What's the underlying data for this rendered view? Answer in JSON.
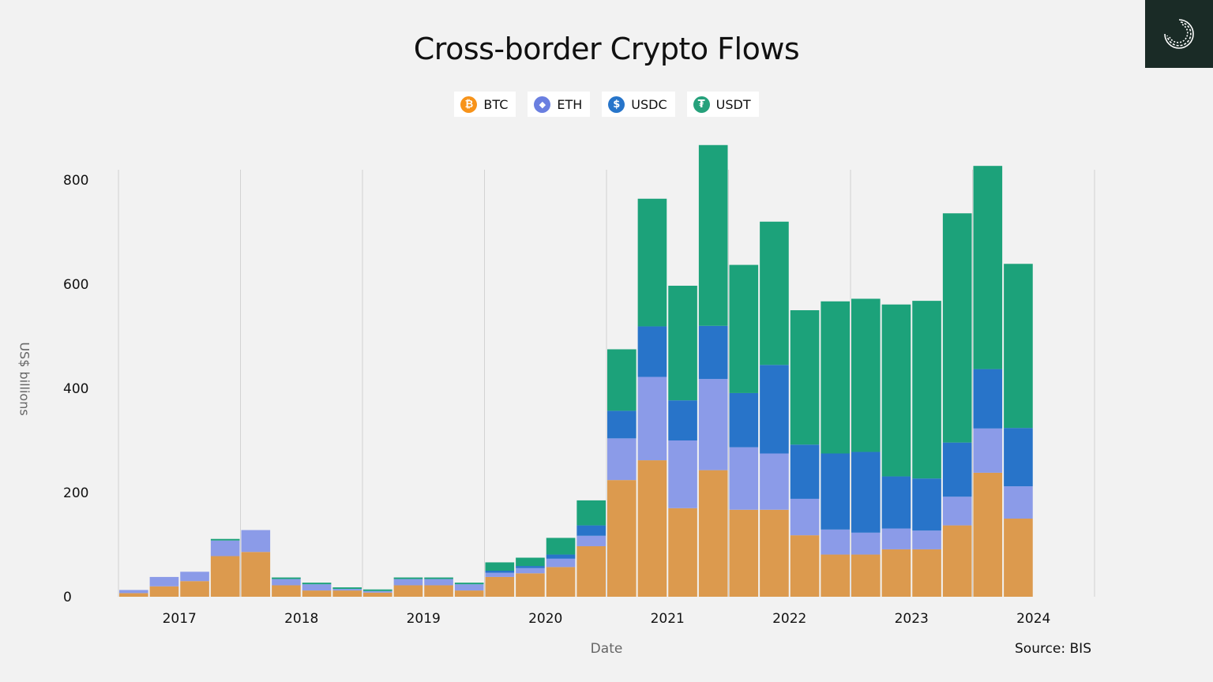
{
  "chart_data": {
    "type": "bar",
    "stacked": true,
    "title": "Cross-border Crypto Flows",
    "xlabel": "Date",
    "ylabel": "US$ billions",
    "source": "Source: BIS",
    "ylim": [
      0,
      830
    ],
    "yticks": [
      0,
      200,
      400,
      600,
      800
    ],
    "year_labels": [
      "2017",
      "2018",
      "2019",
      "2020",
      "2021",
      "2022",
      "2023",
      "2024"
    ],
    "legend_position": "top-center",
    "categories": [
      "2017Q1",
      "2017Q2",
      "2017Q3",
      "2017Q4",
      "2018Q1",
      "2018Q2",
      "2018Q3",
      "2018Q4",
      "2019Q1",
      "2019Q2",
      "2019Q3",
      "2019Q4",
      "2020Q1",
      "2020Q2",
      "2020Q3",
      "2020Q4",
      "2021Q1",
      "2021Q2",
      "2021Q3",
      "2021Q4",
      "2022Q1",
      "2022Q2",
      "2022Q3",
      "2022Q4",
      "2023Q1",
      "2023Q2",
      "2023Q3",
      "2023Q4",
      "2024Q1",
      "2024Q2"
    ],
    "series": [
      {
        "name": "BTC",
        "color": "#dc9a4e",
        "icon": "bitcoin-icon",
        "glyph": "₿",
        "values": [
          7,
          20,
          30,
          78,
          86,
          22,
          12,
          12,
          8,
          22,
          22,
          12,
          38,
          45,
          57,
          97,
          224,
          262,
          170,
          243,
          167,
          167,
          118,
          81,
          81,
          91,
          91,
          137,
          238,
          150
        ]
      },
      {
        "name": "ETH",
        "color": "#8b9be8",
        "icon": "ethereum-icon",
        "glyph": "◆",
        "values": [
          6,
          18,
          18,
          30,
          42,
          12,
          12,
          3,
          3,
          12,
          12,
          12,
          8,
          10,
          16,
          20,
          80,
          160,
          130,
          175,
          120,
          108,
          70,
          48,
          42,
          40,
          36,
          55,
          85,
          62
        ]
      },
      {
        "name": "USDC",
        "color": "#2874c9",
        "icon": "usdc-icon",
        "glyph": "$",
        "values": [
          0,
          0,
          0,
          0,
          0,
          0,
          0,
          0,
          0,
          0,
          0,
          0,
          4,
          4,
          8,
          20,
          53,
          97,
          77,
          102,
          104,
          170,
          104,
          146,
          155,
          100,
          100,
          104,
          114,
          112
        ]
      },
      {
        "name": "USDT",
        "color": "#1ca27a",
        "icon": "tether-icon",
        "glyph": "₮",
        "values": [
          0,
          0,
          0,
          3,
          0,
          3,
          3,
          3,
          3,
          3,
          3,
          3,
          16,
          16,
          32,
          48,
          118,
          245,
          220,
          347,
          246,
          275,
          258,
          292,
          294,
          330,
          341,
          440,
          390,
          315
        ]
      }
    ]
  }
}
